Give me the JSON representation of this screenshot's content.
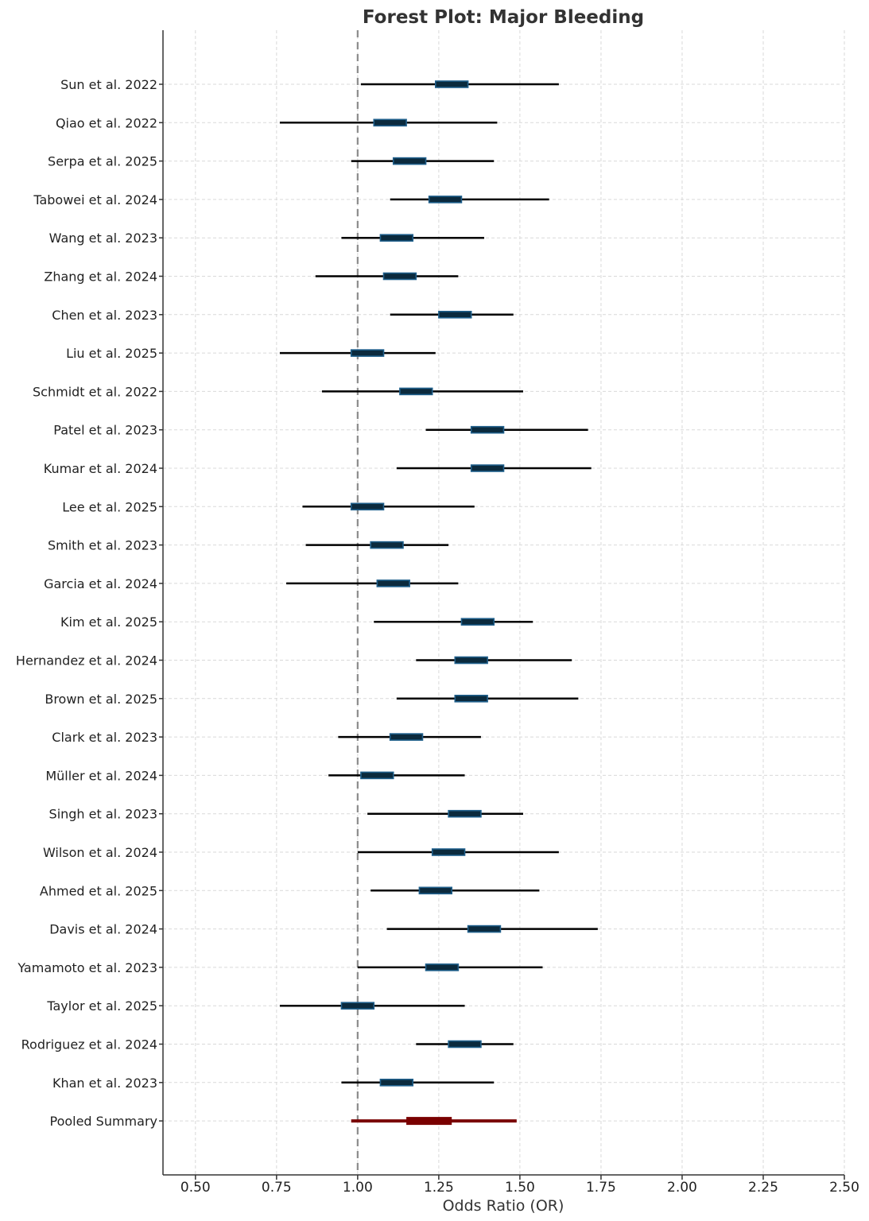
{
  "chart_data": {
    "type": "forest",
    "title": "Forest Plot: Major Bleeding",
    "xlabel": "Odds Ratio (OR)",
    "ylabel": "",
    "xlim": [
      0.4,
      2.5
    ],
    "xticks": [
      0.5,
      0.75,
      1.0,
      1.25,
      1.5,
      1.75,
      2.0,
      2.25,
      2.5
    ],
    "xtick_labels": [
      "0.50",
      "0.75",
      "1.00",
      "1.25",
      "1.50",
      "1.75",
      "2.00",
      "2.25",
      "2.50"
    ],
    "reference_line": 1.0,
    "grid": true,
    "colors": {
      "ci_line": "#000000",
      "box_outline": "#1f5f8b",
      "box_fill": "#0b2a3d",
      "summary": "#7a0000",
      "reference": "#8c8c8c"
    },
    "studies": [
      {
        "label": "Sun et al. 2022",
        "lower": 1.01,
        "box_low": 1.24,
        "box_high": 1.34,
        "upper": 1.62
      },
      {
        "label": "Qiao et al. 2022",
        "lower": 0.76,
        "box_low": 1.05,
        "box_high": 1.15,
        "upper": 1.43
      },
      {
        "label": "Serpa et al. 2025",
        "lower": 0.98,
        "box_low": 1.11,
        "box_high": 1.21,
        "upper": 1.42
      },
      {
        "label": "Tabowei et al. 2024",
        "lower": 1.1,
        "box_low": 1.22,
        "box_high": 1.32,
        "upper": 1.59
      },
      {
        "label": "Wang et al. 2023",
        "lower": 0.95,
        "box_low": 1.07,
        "box_high": 1.17,
        "upper": 1.39
      },
      {
        "label": "Zhang et al. 2024",
        "lower": 0.87,
        "box_low": 1.08,
        "box_high": 1.18,
        "upper": 1.31
      },
      {
        "label": "Chen et al. 2023",
        "lower": 1.1,
        "box_low": 1.25,
        "box_high": 1.35,
        "upper": 1.48
      },
      {
        "label": "Liu et al. 2025",
        "lower": 0.76,
        "box_low": 0.98,
        "box_high": 1.08,
        "upper": 1.24
      },
      {
        "label": "Schmidt et al. 2022",
        "lower": 0.89,
        "box_low": 1.13,
        "box_high": 1.23,
        "upper": 1.51
      },
      {
        "label": "Patel et al. 2023",
        "lower": 1.21,
        "box_low": 1.35,
        "box_high": 1.45,
        "upper": 1.71
      },
      {
        "label": "Kumar et al. 2024",
        "lower": 1.12,
        "box_low": 1.35,
        "box_high": 1.45,
        "upper": 1.72
      },
      {
        "label": "Lee et al. 2025",
        "lower": 0.83,
        "box_low": 0.98,
        "box_high": 1.08,
        "upper": 1.36
      },
      {
        "label": "Smith et al. 2023",
        "lower": 0.84,
        "box_low": 1.04,
        "box_high": 1.14,
        "upper": 1.28
      },
      {
        "label": "Garcia et al. 2024",
        "lower": 0.78,
        "box_low": 1.06,
        "box_high": 1.16,
        "upper": 1.31
      },
      {
        "label": "Kim et al. 2025",
        "lower": 1.05,
        "box_low": 1.32,
        "box_high": 1.42,
        "upper": 1.54
      },
      {
        "label": "Hernandez et al. 2024",
        "lower": 1.18,
        "box_low": 1.3,
        "box_high": 1.4,
        "upper": 1.66
      },
      {
        "label": "Brown et al. 2025",
        "lower": 1.12,
        "box_low": 1.3,
        "box_high": 1.4,
        "upper": 1.68
      },
      {
        "label": "Clark et al. 2023",
        "lower": 0.94,
        "box_low": 1.1,
        "box_high": 1.2,
        "upper": 1.38
      },
      {
        "label": "Müller et al. 2024",
        "lower": 0.91,
        "box_low": 1.01,
        "box_high": 1.11,
        "upper": 1.33
      },
      {
        "label": "Singh et al. 2023",
        "lower": 1.03,
        "box_low": 1.28,
        "box_high": 1.38,
        "upper": 1.51
      },
      {
        "label": "Wilson et al. 2024",
        "lower": 1.0,
        "box_low": 1.23,
        "box_high": 1.33,
        "upper": 1.62
      },
      {
        "label": "Ahmed et al. 2025",
        "lower": 1.04,
        "box_low": 1.19,
        "box_high": 1.29,
        "upper": 1.56
      },
      {
        "label": "Davis et al. 2024",
        "lower": 1.09,
        "box_low": 1.34,
        "box_high": 1.44,
        "upper": 1.74
      },
      {
        "label": "Yamamoto et al. 2023",
        "lower": 1.0,
        "box_low": 1.21,
        "box_high": 1.31,
        "upper": 1.57
      },
      {
        "label": "Taylor et al. 2025",
        "lower": 0.76,
        "box_low": 0.95,
        "box_high": 1.05,
        "upper": 1.33
      },
      {
        "label": "Rodriguez et al. 2024",
        "lower": 1.18,
        "box_low": 1.28,
        "box_high": 1.38,
        "upper": 1.48
      },
      {
        "label": "Khan et al. 2023",
        "lower": 0.95,
        "box_low": 1.07,
        "box_high": 1.17,
        "upper": 1.42
      }
    ],
    "summary": {
      "label": "Pooled Summary",
      "lower": 0.98,
      "box_low": 1.15,
      "box_high": 1.29,
      "upper": 1.49
    }
  }
}
